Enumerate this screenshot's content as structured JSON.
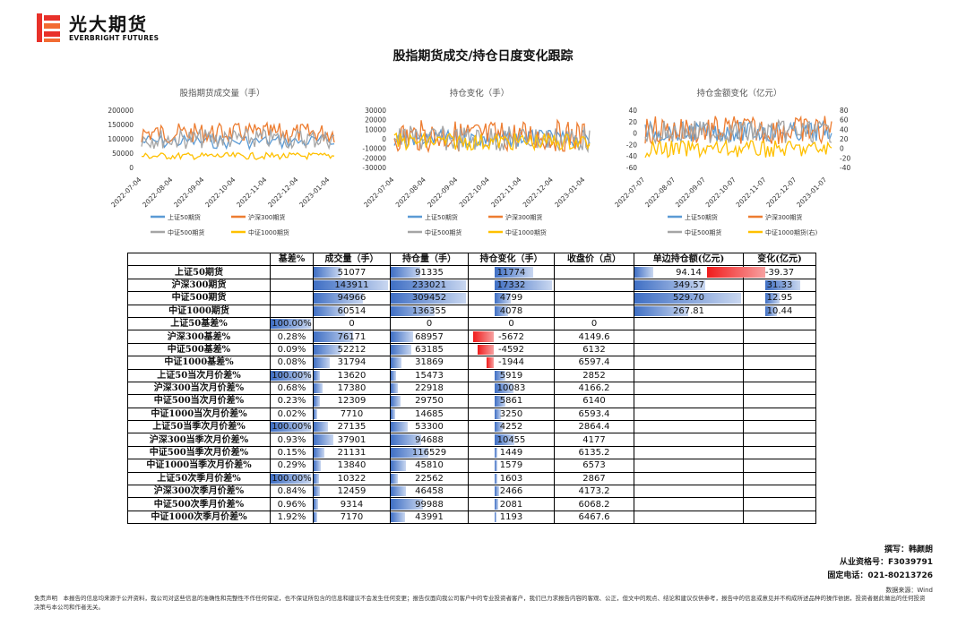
{
  "header": {
    "brand_cn": "光大期货",
    "brand_en": "EVERBRIGHT FUTURES",
    "title": "股指期货成交/持仓日度变化跟踪"
  },
  "colors": {
    "sz50": "#5b9bd5",
    "hs300": "#ed7d31",
    "zz500": "#a5a5a5",
    "zz1000": "#ffc000",
    "bar_blue": "#3f6fc4",
    "bar_red": "#f01c1c"
  },
  "charts": [
    {
      "title": "股指期货成交量（手）",
      "y_ticks": [
        "200000",
        "150000",
        "100000",
        "50000",
        "0"
      ],
      "x_ticks": [
        "2022-07-04",
        "2022-08-04",
        "2022-09-04",
        "2022-10-04",
        "2022-11-04",
        "2022-12-04",
        "2023-01-04"
      ],
      "legend": [
        "上证50期货",
        "沪深300期货",
        "中证500期货",
        "中证1000期货"
      ]
    },
    {
      "title": "持仓变化（手）",
      "y_ticks": [
        "30000",
        "20000",
        "10000",
        "0",
        "-10000",
        "-20000",
        "-30000"
      ],
      "x_ticks": [
        "2022-07-04",
        "2022-08-04",
        "2022-09-04",
        "2022-10-04",
        "2022-11-04",
        "2022-12-04",
        "2023-01-04"
      ],
      "legend": [
        "上证50期货",
        "沪深300期货",
        "中证500期货",
        "中证1000期货"
      ]
    },
    {
      "title": "持仓金额变化（亿元）",
      "y_ticks": [
        "40",
        "20",
        "0",
        "-20",
        "-40",
        "-60"
      ],
      "y2_ticks": [
        "80",
        "60",
        "40",
        "20",
        "0",
        "-20",
        "-40"
      ],
      "x_ticks": [
        "2022-07-07",
        "2022-08-07",
        "2022-09-07",
        "2022-10-07",
        "2022-11-07",
        "2022-12-07",
        "2023-01-07"
      ],
      "legend": [
        "上证50期货",
        "沪深300期货",
        "中证500期货",
        "中证1000期货(右)"
      ]
    }
  ],
  "table": {
    "headers": [
      "",
      "基差%",
      "成交量（手）",
      "持仓量（手）",
      "持仓变化（手）",
      "收盘价（点）",
      "单边持仓额(亿元)",
      "变化(亿元)"
    ],
    "rows": [
      {
        "label": "上证50期货",
        "basis": "",
        "vol": "51077",
        "oi": "91335",
        "chg": "11774",
        "close": "",
        "amt": "94.14",
        "amtchg": "-39.37",
        "b": [
          null,
          0.36,
          0.39,
          0.68,
          null,
          0.18,
          -0.9
        ]
      },
      {
        "label": "沪深300期货",
        "basis": "",
        "vol": "143911",
        "oi": "233021",
        "chg": "17332",
        "close": "",
        "amt": "349.57",
        "amtchg": "31.33",
        "b": [
          null,
          1.0,
          1.0,
          1.0,
          null,
          0.66,
          0.72
        ]
      },
      {
        "label": "中证500期货",
        "basis": "",
        "vol": "94966",
        "oi": "309452",
        "chg": "4799",
        "close": "",
        "amt": "529.70",
        "amtchg": "12.95",
        "b": [
          null,
          0.66,
          1.0,
          0.28,
          null,
          1.0,
          0.3
        ]
      },
      {
        "label": "中证1000期货",
        "basis": "",
        "vol": "60514",
        "oi": "136355",
        "chg": "4078",
        "close": "",
        "amt": "267.81",
        "amtchg": "10.44",
        "b": [
          null,
          0.42,
          0.58,
          0.24,
          null,
          0.5,
          0.24
        ]
      },
      {
        "label": "上证50基差%",
        "basis": "100.00%",
        "vol": "0",
        "oi": "0",
        "chg": "0",
        "close": "0",
        "amt": "",
        "amtchg": "",
        "b": [
          1.0,
          0,
          0,
          0,
          null,
          null,
          null
        ]
      },
      {
        "label": "沪深300基差%",
        "basis": "0.28%",
        "vol": "76171",
        "oi": "68957",
        "chg": "-5672",
        "close": "4149.6",
        "amt": "",
        "amtchg": "",
        "b": [
          0,
          0.53,
          0.3,
          -0.28,
          null,
          null,
          null
        ]
      },
      {
        "label": "中证500基差%",
        "basis": "0.09%",
        "vol": "52212",
        "oi": "63185",
        "chg": "-4592",
        "close": "6132",
        "amt": "",
        "amtchg": "",
        "b": [
          0,
          0.36,
          0.27,
          -0.22,
          null,
          null,
          null
        ]
      },
      {
        "label": "中证1000基差%",
        "basis": "0.08%",
        "vol": "31794",
        "oi": "31869",
        "chg": "-1944",
        "close": "6597.4",
        "amt": "",
        "amtchg": "",
        "b": [
          0,
          0.22,
          0.14,
          -0.1,
          null,
          null,
          null
        ]
      },
      {
        "label": "上证50当次月价差%",
        "basis": "100.00%",
        "vol": "13620",
        "oi": "15473",
        "chg": "5919",
        "close": "2852",
        "amt": "",
        "amtchg": "",
        "b": [
          1.0,
          0.09,
          0.07,
          0.2,
          null,
          null,
          null
        ]
      },
      {
        "label": "沪深300当次月价差%",
        "basis": "0.68%",
        "vol": "17380",
        "oi": "22918",
        "chg": "10083",
        "close": "4166.2",
        "amt": "",
        "amtchg": "",
        "b": [
          0,
          0.12,
          0.1,
          0.34,
          null,
          null,
          null
        ]
      },
      {
        "label": "中证500当次月价差%",
        "basis": "0.23%",
        "vol": "12309",
        "oi": "29750",
        "chg": "5861",
        "close": "6140",
        "amt": "",
        "amtchg": "",
        "b": [
          0,
          0.09,
          0.13,
          0.2,
          null,
          null,
          null
        ]
      },
      {
        "label": "中证1000当次月价差%",
        "basis": "0.02%",
        "vol": "7710",
        "oi": "14685",
        "chg": "3250",
        "close": "6593.4",
        "amt": "",
        "amtchg": "",
        "b": [
          0,
          0.05,
          0.06,
          0.11,
          null,
          null,
          null
        ]
      },
      {
        "label": "上证50当季次月价差%",
        "basis": "100.00%",
        "vol": "27135",
        "oi": "53300",
        "chg": "4252",
        "close": "2864.4",
        "amt": "",
        "amtchg": "",
        "b": [
          1.0,
          0.19,
          0.23,
          0.14,
          null,
          null,
          null
        ]
      },
      {
        "label": "沪深300当季次月价差%",
        "basis": "0.93%",
        "vol": "37901",
        "oi": "94688",
        "chg": "10455",
        "close": "4177",
        "amt": "",
        "amtchg": "",
        "b": [
          0,
          0.26,
          0.41,
          0.35,
          null,
          null,
          null
        ]
      },
      {
        "label": "中证500当季次月价差%",
        "basis": "0.15%",
        "vol": "21131",
        "oi": "116529",
        "chg": "1449",
        "close": "6135.2",
        "amt": "",
        "amtchg": "",
        "b": [
          0,
          0.15,
          0.5,
          0.05,
          null,
          null,
          null
        ]
      },
      {
        "label": "中证1000当季次月价差%",
        "basis": "0.29%",
        "vol": "13840",
        "oi": "45810",
        "chg": "1579",
        "close": "6573",
        "amt": "",
        "amtchg": "",
        "b": [
          0,
          0.1,
          0.2,
          0.05,
          null,
          null,
          null
        ]
      },
      {
        "label": "上证50次季月价差%",
        "basis": "100.00%",
        "vol": "10322",
        "oi": "22562",
        "chg": "1603",
        "close": "2867",
        "amt": "",
        "amtchg": "",
        "b": [
          1.0,
          0.07,
          0.1,
          0.05,
          null,
          null,
          null
        ]
      },
      {
        "label": "沪深300次季月价差%",
        "basis": "0.84%",
        "vol": "12459",
        "oi": "46458",
        "chg": "2466",
        "close": "4173.2",
        "amt": "",
        "amtchg": "",
        "b": [
          0,
          0.09,
          0.2,
          0.08,
          null,
          null,
          null
        ]
      },
      {
        "label": "中证500次季月价差%",
        "basis": "0.96%",
        "vol": "9314",
        "oi": "99988",
        "chg": "2081",
        "close": "6068.2",
        "amt": "",
        "amtchg": "",
        "b": [
          0,
          0.06,
          0.43,
          0.07,
          null,
          null,
          null
        ]
      },
      {
        "label": "中证1000次季月价差%",
        "basis": "1.92%",
        "vol": "7170",
        "oi": "43991",
        "chg": "1193",
        "close": "6467.6",
        "amt": "",
        "amtchg": "",
        "b": [
          0,
          0.05,
          0.19,
          0.04,
          null,
          null,
          null
        ]
      }
    ]
  },
  "contact": {
    "author": "撰写：韩颜朗",
    "license": "从业资格号：F3039791",
    "phone": "固定电话：021-80213726"
  },
  "source": "数据来源：Wind",
  "disclaimer": "免责声明　本报告的信息均来源于公开资料，我公司对这些信息的准确性和完整性不作任何保证，也不保证所包含的信息和建议不会发生任何变更；报告仅面向我公司客户中的专业投资者客户，我们已力求报告内容的客观、公正，但文中的观点、结论和建议仅供参考，报告中的信息或意见并不构成所述品种的操作依据，投资者据此做出的任何投资决策与本公司和作者无关。"
}
